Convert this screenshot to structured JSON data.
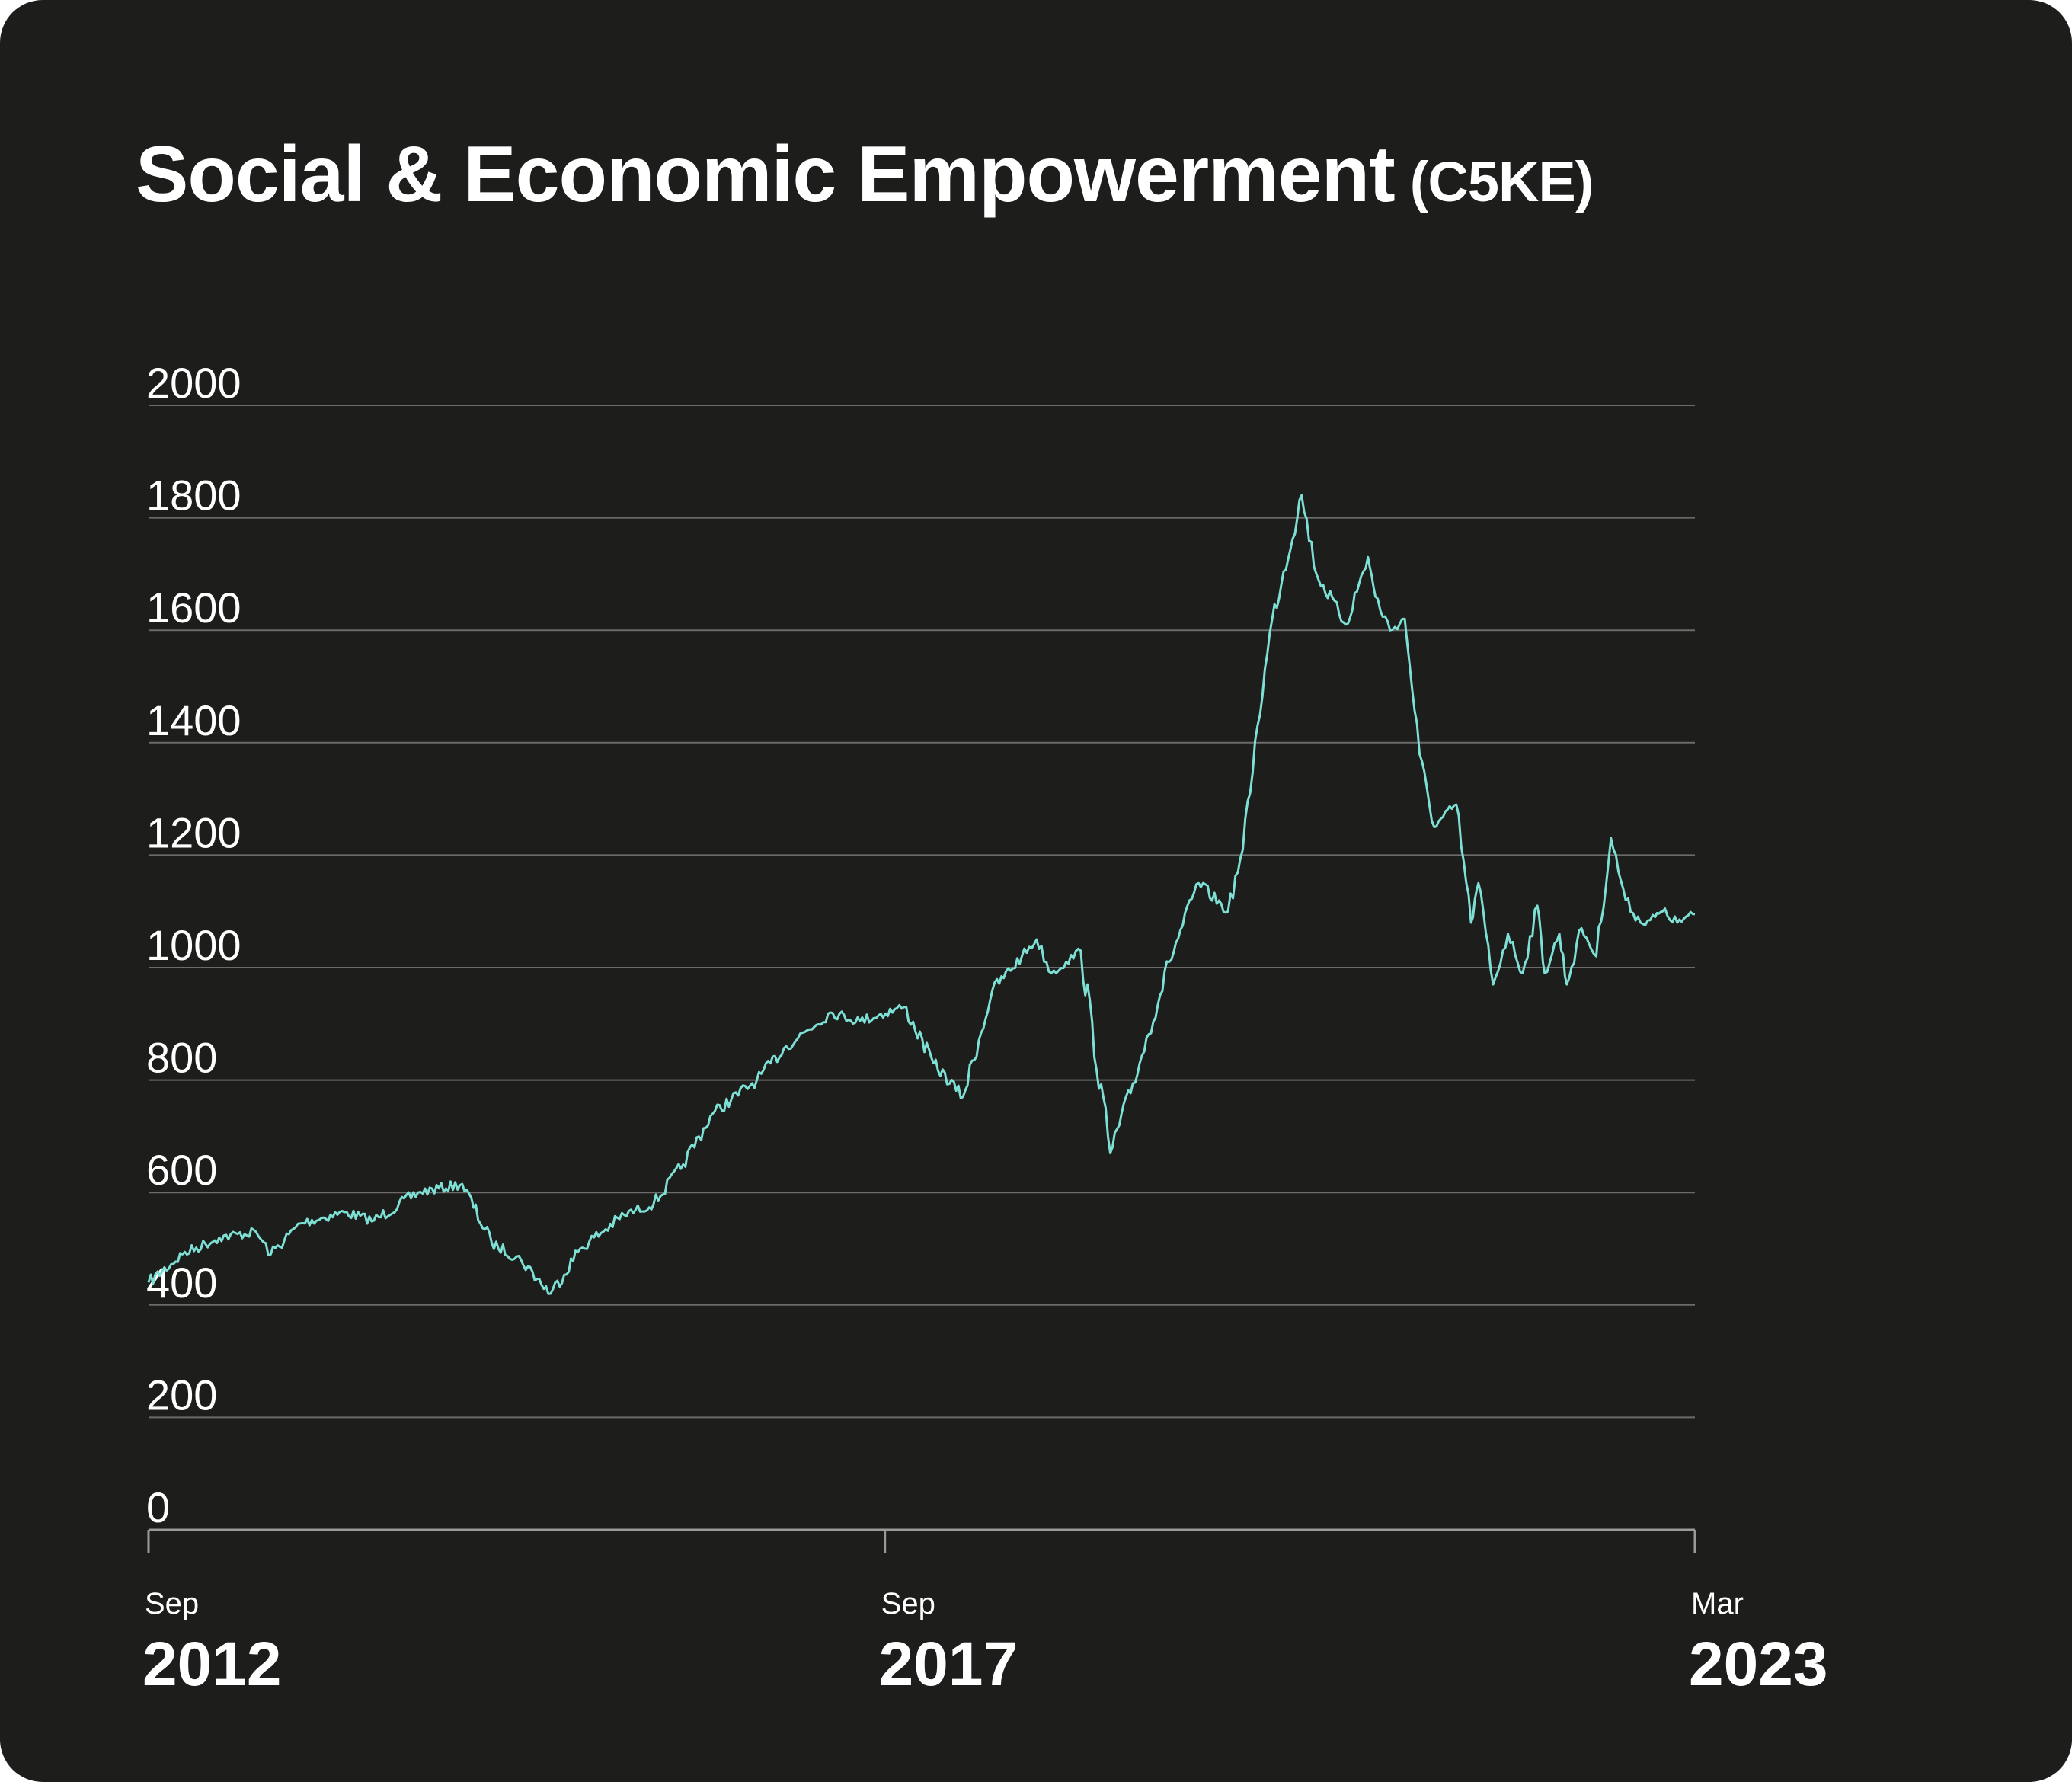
{
  "card": {
    "title": "Social & Economic Empowerment",
    "symbol": "(C5KE)"
  },
  "colors": {
    "background": "#1d1d1c",
    "line": "#7ee0d4",
    "grid": "#6b6b6a",
    "text": "#ffffff"
  },
  "chart_data": {
    "type": "line",
    "title": "Social & Economic Empowerment (C5KE)",
    "xlabel": "",
    "ylabel": "",
    "ylim": [
      0,
      2000
    ],
    "yticks": [
      "0",
      "200",
      "400",
      "600",
      "800",
      "1000",
      "1200",
      "1400",
      "1600",
      "1800",
      "2000"
    ],
    "xticks": [
      {
        "month": "Sep",
        "year": "2012",
        "pos": 2012.67
      },
      {
        "month": "Sep",
        "year": "2017",
        "pos": 2017.67
      },
      {
        "month": "Mar",
        "year": "2023",
        "pos": 2023.17
      }
    ],
    "xlim": [
      2012.67,
      2023.17
    ],
    "series": [
      {
        "name": "C5KE",
        "x": [
          2012.67,
          2012.9,
          2013.15,
          2013.4,
          2013.5,
          2013.7,
          2014.0,
          2014.2,
          2014.5,
          2014.8,
          2015.0,
          2015.2,
          2015.4,
          2015.6,
          2015.9,
          2016.1,
          2016.3,
          2016.5,
          2016.8,
          2017.0,
          2017.3,
          2017.5,
          2017.8,
          2018.0,
          2018.2,
          2018.4,
          2018.6,
          2018.7,
          2018.8,
          2018.9,
          2019.0,
          2019.2,
          2019.4,
          2019.6,
          2019.8,
          2020.0,
          2020.1,
          2020.2,
          2020.3,
          2020.5,
          2020.6,
          2020.8,
          2020.95,
          2021.0,
          2021.1,
          2021.2,
          2021.3,
          2021.4,
          2021.55,
          2021.65,
          2021.7,
          2021.8,
          2021.9,
          2022.0,
          2022.1,
          2022.15,
          2022.25,
          2022.3,
          2022.4,
          2022.5,
          2022.6,
          2022.7,
          2022.8,
          2022.9,
          2022.95,
          2023.05,
          2023.17
        ],
        "values": [
          440,
          490,
          520,
          530,
          490,
          545,
          565,
          550,
          600,
          615,
          510,
          480,
          420,
          500,
          560,
          580,
          650,
          740,
          800,
          860,
          920,
          905,
          930,
          830,
          770,
          960,
          1020,
          1050,
          990,
          1010,
          1030,
          670,
          830,
          1010,
          1150,
          1100,
          1210,
          1430,
          1620,
          1840,
          1700,
          1610,
          1730,
          1660,
          1600,
          1620,
          1380,
          1250,
          1290,
          1080,
          1150,
          970,
          1060,
          990,
          1110,
          990,
          1060,
          970,
          1070,
          1020,
          1230,
          1120,
          1080,
          1090,
          1100,
          1080,
          1095
        ]
      }
    ]
  }
}
